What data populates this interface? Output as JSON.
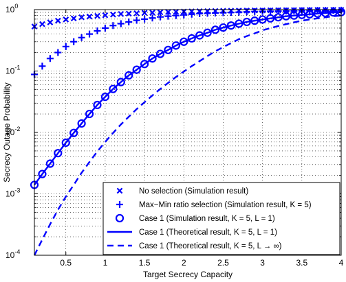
{
  "chart_data": {
    "type": "line",
    "xlabel": "Target Secrecy Capacity",
    "ylabel": "Secrecy Outage Probability",
    "xscale": "linear",
    "yscale": "log",
    "xlim": [
      0.1,
      4
    ],
    "ylim": [
      0.0001,
      1
    ],
    "xticks": [
      0.5,
      1,
      1.5,
      2,
      2.5,
      3,
      3.5,
      4
    ],
    "xtick_labels": [
      "0.5",
      "1",
      "1.5",
      "2",
      "2.5",
      "3",
      "3.5",
      "4"
    ],
    "yticks": [
      0.0001,
      0.001,
      0.01,
      0.1,
      1
    ],
    "ytick_labels": [
      {
        "base": "10",
        "exp": "-4"
      },
      {
        "base": "10",
        "exp": "-3"
      },
      {
        "base": "10",
        "exp": "-2"
      },
      {
        "base": "10",
        "exp": "-1"
      },
      {
        "base": "10",
        "exp": "0"
      }
    ],
    "grid": true,
    "legend_position": "bottom-right",
    "color": "#0000ff",
    "x": [
      0.1,
      0.2,
      0.3,
      0.4,
      0.5,
      0.6,
      0.7,
      0.8,
      0.9,
      1.0,
      1.1,
      1.2,
      1.3,
      1.4,
      1.5,
      1.6,
      1.7,
      1.8,
      1.9,
      2.0,
      2.1,
      2.2,
      2.3,
      2.4,
      2.5,
      2.6,
      2.7,
      2.8,
      2.9,
      3.0,
      3.1,
      3.2,
      3.3,
      3.4,
      3.5,
      3.6,
      3.7,
      3.8,
      3.9,
      4.0
    ],
    "series": [
      {
        "name": "No selection (Simulation result)",
        "marker": "x",
        "line": "none",
        "values": [
          0.53,
          0.58,
          0.62,
          0.66,
          0.69,
          0.72,
          0.75,
          0.77,
          0.79,
          0.81,
          0.83,
          0.85,
          0.86,
          0.87,
          0.885,
          0.895,
          0.905,
          0.915,
          0.92,
          0.93,
          0.935,
          0.94,
          0.945,
          0.95,
          0.955,
          0.96,
          0.963,
          0.966,
          0.97,
          0.972,
          0.975,
          0.977,
          0.979,
          0.981,
          0.983,
          0.985,
          0.986,
          0.987,
          0.988,
          0.99
        ]
      },
      {
        "name": "Max−Min ratio selection (Simulation result, K = 5)",
        "marker": "+",
        "line": "none",
        "values": [
          0.088,
          0.12,
          0.16,
          0.2,
          0.25,
          0.3,
          0.35,
          0.4,
          0.45,
          0.5,
          0.55,
          0.59,
          0.63,
          0.67,
          0.7,
          0.73,
          0.76,
          0.78,
          0.8,
          0.82,
          0.84,
          0.86,
          0.87,
          0.88,
          0.89,
          0.9,
          0.91,
          0.92,
          0.93,
          0.935,
          0.94,
          0.945,
          0.95,
          0.955,
          0.96,
          0.965,
          0.97,
          0.972,
          0.975,
          0.978
        ]
      },
      {
        "name": "Case 1 (Simulation result, K = 5, L = 1)",
        "marker": "o",
        "line": "none",
        "values": [
          0.0014,
          0.0021,
          0.0031,
          0.0046,
          0.0068,
          0.0098,
          0.014,
          0.02,
          0.028,
          0.038,
          0.051,
          0.066,
          0.085,
          0.105,
          0.13,
          0.16,
          0.19,
          0.22,
          0.26,
          0.3,
          0.34,
          0.38,
          0.42,
          0.47,
          0.51,
          0.55,
          0.59,
          0.63,
          0.66,
          0.69,
          0.72,
          0.75,
          0.78,
          0.8,
          0.82,
          0.84,
          0.86,
          0.88,
          0.9,
          0.91
        ]
      },
      {
        "name": "Case 1 (Theoretical result, K = 5, L = 1)",
        "marker": "none",
        "line": "solid",
        "values": [
          0.0014,
          0.0021,
          0.0031,
          0.0046,
          0.0068,
          0.0098,
          0.014,
          0.02,
          0.028,
          0.038,
          0.051,
          0.066,
          0.085,
          0.105,
          0.13,
          0.16,
          0.19,
          0.22,
          0.26,
          0.3,
          0.34,
          0.38,
          0.42,
          0.47,
          0.51,
          0.55,
          0.59,
          0.63,
          0.66,
          0.69,
          0.72,
          0.75,
          0.78,
          0.8,
          0.82,
          0.84,
          0.86,
          0.88,
          0.9,
          0.91
        ]
      },
      {
        "name": "Case 1 (Theoretical result, K = 5, L → ∞)",
        "marker": "none",
        "line": "dashed",
        "values": [
          0.0001,
          0.00018,
          0.00032,
          0.00055,
          0.0009,
          0.0014,
          0.0022,
          0.0033,
          0.0049,
          0.007,
          0.0098,
          0.0135,
          0.018,
          0.024,
          0.031,
          0.04,
          0.051,
          0.064,
          0.08,
          0.098,
          0.12,
          0.145,
          0.175,
          0.21,
          0.245,
          0.285,
          0.33,
          0.37,
          0.41,
          0.46,
          0.5,
          0.54,
          0.58,
          0.62,
          0.66,
          0.69,
          0.72,
          0.75,
          0.78,
          0.8
        ]
      }
    ]
  }
}
